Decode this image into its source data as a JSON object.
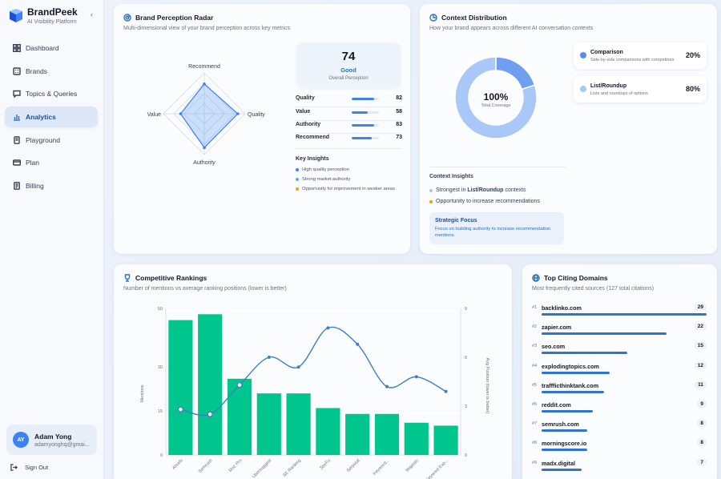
{
  "app": {
    "name": "BrandPeek",
    "subtitle": "AI Visibility Platform",
    "collapse_icon": "chevron-left-icon"
  },
  "sidebar": {
    "items": [
      {
        "label": "Dashboard",
        "icon": "grid-icon",
        "active": false
      },
      {
        "label": "Brands",
        "icon": "building-icon",
        "active": false
      },
      {
        "label": "Topics & Queries",
        "icon": "chat-icon",
        "active": false
      },
      {
        "label": "Analytics",
        "icon": "bar-chart-icon",
        "active": true
      },
      {
        "label": "Playground",
        "icon": "flask-icon",
        "active": false
      },
      {
        "label": "Plan",
        "icon": "card-icon",
        "active": false
      },
      {
        "label": "Billing",
        "icon": "receipt-icon",
        "active": false
      }
    ],
    "user": {
      "initials": "AY",
      "name": "Adam Yong",
      "email": "adamyonghq@gmai..."
    },
    "signout_label": "Sign Out"
  },
  "radar": {
    "title": "Brand Perception Radar",
    "subtitle": "Multi-dimensional view of your brand perception across key metrics",
    "chart_data": {
      "type": "radar",
      "axes": [
        "Recommend",
        "Quality",
        "Authority",
        "Value"
      ],
      "values": [
        73,
        82,
        83,
        58
      ],
      "max": 100
    },
    "score": {
      "value": "74",
      "label": "Good",
      "caption": "Overall Perception"
    },
    "metrics": [
      {
        "name": "Quality",
        "value": "82",
        "pct": 82
      },
      {
        "name": "Value",
        "value": "58",
        "pct": 58
      },
      {
        "name": "Authority",
        "value": "83",
        "pct": 83
      },
      {
        "name": "Recommend",
        "value": "73",
        "pct": 73
      }
    ],
    "insights_title": "Key Insights",
    "insights": [
      {
        "text": "High quality perception",
        "color": "#3b82f6"
      },
      {
        "text": "Strong market authority",
        "color": "#60a5fa"
      },
      {
        "text": "Opportunity for improvement in weaker areas",
        "color": "#f59e0b"
      }
    ]
  },
  "context": {
    "title": "Context Distribution",
    "subtitle": "How your brand appears across different AI conversation contexts",
    "chart_data": {
      "type": "pie",
      "labels": [
        "Comparison",
        "List/Roundup"
      ],
      "values": [
        20,
        80
      ],
      "colors": [
        "#6f9ff0",
        "#a9c7f7"
      ],
      "center_value": "100%",
      "center_label": "Total Coverage"
    },
    "legend": [
      {
        "name": "Comparison",
        "desc": "Side-by-side comparisons with competitors",
        "pct": "20%",
        "color": "#5b8def"
      },
      {
        "name": "List/Roundup",
        "desc": "Lists and roundups of options",
        "pct": "80%",
        "color": "#a9c7f7"
      }
    ],
    "insights_title": "Context Insights",
    "insight_1_prefix": "Strongest in ",
    "insight_1_bold": "List/Roundup",
    "insight_1_suffix": " contexts",
    "insight_2": "Opportunity to increase recommendations",
    "strategic_title": "Strategic Focus",
    "strategic_text": "Focus on building authority to increase recommendation mentions."
  },
  "rankings": {
    "title": "Competitive Rankings",
    "subtitle": "Number of mentions vs average ranking positions (lower is better)",
    "chart_data": {
      "type": "bar",
      "categories": [
        "Ahrefs",
        "Semrush",
        "Moz Pro",
        "Ubersuggest",
        "SE Ranking",
        "SpyFu",
        "Serpstat",
        "Keyword...",
        "Majestic",
        "Keyword Exp..."
      ],
      "series": [
        {
          "name": "Mentions",
          "type": "bar",
          "values": [
            46,
            48,
            26,
            21,
            21,
            16,
            14,
            14,
            11,
            10
          ],
          "axis": "left"
        },
        {
          "name": "Avg Position",
          "type": "line",
          "values": [
            2.8,
            2.5,
            4.3,
            6.0,
            5.4,
            7.8,
            6.8,
            4.2,
            4.8,
            3.9
          ],
          "axis": "right"
        }
      ],
      "ylabel": "Mentions",
      "y2label": "Avg Position (lower is better)",
      "ylim": [
        0,
        50
      ],
      "y2lim": [
        0,
        9
      ],
      "yticks": [
        0,
        15,
        30,
        50
      ],
      "y2ticks": [
        0,
        3,
        6,
        9
      ],
      "colors": {
        "bar": "#00c58c",
        "line": "#3d7fc4"
      }
    }
  },
  "domains": {
    "title": "Top Citing Domains",
    "subtitle": "Most frequently cited sources (127 total citations)",
    "items": [
      {
        "rank": "#1",
        "name": "backlinko.com",
        "count": "29",
        "value": 29
      },
      {
        "rank": "#2",
        "name": "zapier.com",
        "count": "22",
        "value": 22
      },
      {
        "rank": "#3",
        "name": "seo.com",
        "count": "15",
        "value": 15
      },
      {
        "rank": "#4",
        "name": "explodingtopics.com",
        "count": "12",
        "value": 12
      },
      {
        "rank": "#5",
        "name": "traffficthinktank.com",
        "count": "11",
        "value": 11
      },
      {
        "rank": "#6",
        "name": "reddit.com",
        "count": "9",
        "value": 9
      },
      {
        "rank": "#7",
        "name": "semrush.com",
        "count": "8",
        "value": 8
      },
      {
        "rank": "#8",
        "name": "morningscore.io",
        "count": "8",
        "value": 8
      },
      {
        "rank": "#9",
        "name": "madx.digital",
        "count": "7",
        "value": 7
      }
    ]
  }
}
